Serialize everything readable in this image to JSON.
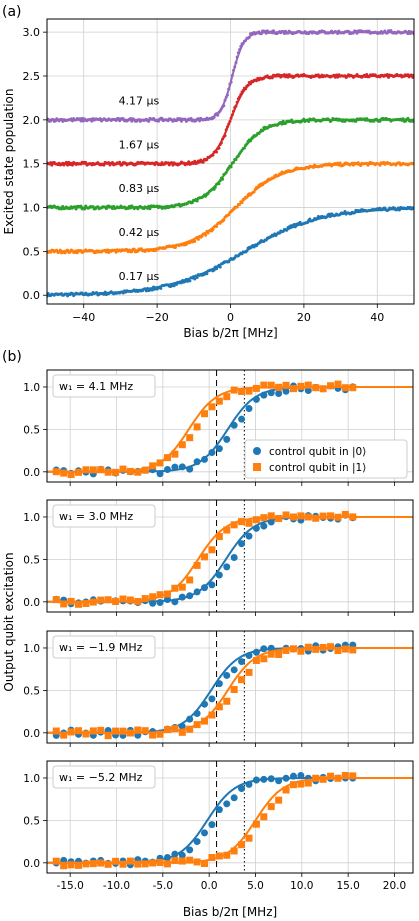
{
  "figure": {
    "panel_a_label": "(a)",
    "panel_b_label": "(b)",
    "colors": {
      "blue": "#1f77b4",
      "orange": "#ff7f0e",
      "green": "#2ca02c",
      "red": "#d62728",
      "purple": "#9467bd",
      "grid": "#d0d0d0",
      "axis": "#000000"
    }
  },
  "chart_data": [
    {
      "panel": "a",
      "type": "line",
      "xlabel": "Bias b/2π [MHz]",
      "ylabel": "Excited state population",
      "xlim": [
        -50,
        50
      ],
      "ylim": [
        -0.1,
        3.15
      ],
      "xticks": [
        -40,
        -20,
        0,
        20,
        40
      ],
      "xtick_labels": [
        "−40",
        "−20",
        "0",
        "20",
        "40"
      ],
      "yticks": [
        0.0,
        0.5,
        1.0,
        1.5,
        2.0,
        2.5,
        3.0
      ],
      "ytick_labels": [
        "0.0",
        "0.5",
        "1.0",
        "1.5",
        "2.0",
        "2.5",
        "3.0"
      ],
      "grid": true,
      "series": [
        {
          "name": "0.17 μs",
          "offset": 0.0,
          "center": 4.0,
          "width": 10.0,
          "amplitude": 1.0,
          "color": "#1f77b4"
        },
        {
          "name": "0.42 μs",
          "offset": 0.5,
          "center": 1.5,
          "width": 6.0,
          "amplitude": 1.0,
          "color": "#ff7f0e"
        },
        {
          "name": "0.83 μs",
          "offset": 1.0,
          "center": 0.5,
          "width": 4.0,
          "amplitude": 1.0,
          "color": "#2ca02c"
        },
        {
          "name": "1.67 μs",
          "offset": 1.5,
          "center": 0.0,
          "width": 2.2,
          "amplitude": 1.0,
          "color": "#d62728"
        },
        {
          "name": "4.17 μs",
          "offset": 2.0,
          "center": 0.5,
          "width": 1.5,
          "amplitude": 1.0,
          "color": "#9467bd"
        }
      ]
    },
    {
      "panel": "b",
      "type": "scatter",
      "xlabel": "Bias b/2π  [MHz]",
      "ylabel": "Output qubit excitation",
      "xlim": [
        -17.5,
        22
      ],
      "ylim": [
        -0.12,
        1.2
      ],
      "xticks": [
        -15,
        -10,
        -5,
        0,
        5,
        10,
        15,
        20
      ],
      "xtick_labels": [
        "-15.0",
        "-10.0",
        "-5.0",
        "0.0",
        "5.0",
        "10.0",
        "15.0",
        "20.0"
      ],
      "yticks": [
        0.0,
        0.5,
        1.0
      ],
      "ytick_labels": [
        "0.0",
        "0.5",
        "1.0"
      ],
      "grid": true,
      "dashed_line_x": 0.8,
      "dotted_line_x": 3.8,
      "legend": {
        "position": "right",
        "entries": [
          "control qubit in |0⟩",
          "control qubit in |1⟩"
        ]
      },
      "subplots": [
        {
          "label": "w₁ = 4.1 MHz",
          "fit0": {
            "center": 2.0,
            "width": 1.5
          },
          "fit1": {
            "center": -2.2,
            "width": 1.5
          }
        },
        {
          "label": "w₁ = 3.0 MHz",
          "fit0": {
            "center": 1.8,
            "width": 1.5
          },
          "fit1": {
            "center": -1.2,
            "width": 1.5
          }
        },
        {
          "label": "w₁ = −1.9 MHz",
          "fit0": {
            "center": 0.2,
            "width": 1.5
          },
          "fit1": {
            "center": 2.0,
            "width": 1.5
          }
        },
        {
          "label": "w₁ = −5.2 MHz",
          "fit0": {
            "center": -0.2,
            "width": 1.5
          },
          "fit1": {
            "center": 5.0,
            "width": 1.5
          }
        }
      ]
    }
  ]
}
